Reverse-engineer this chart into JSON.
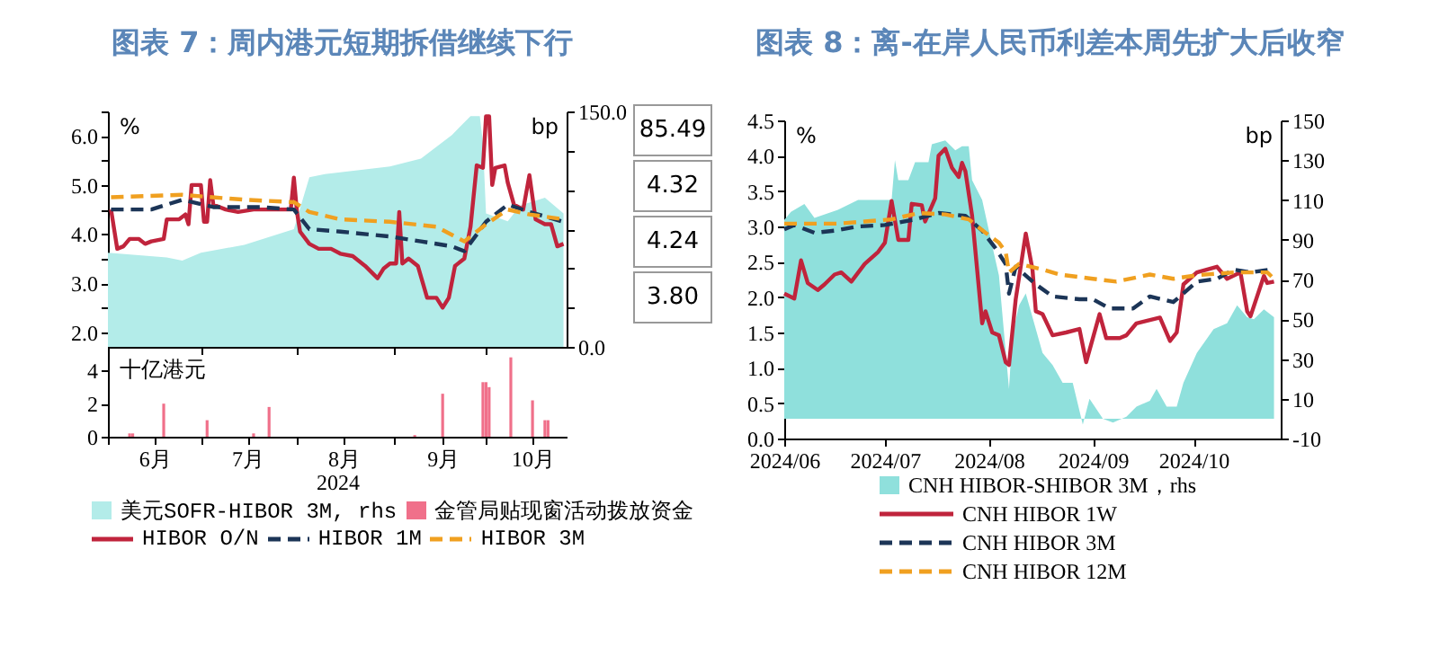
{
  "chart_data": [
    {
      "type": "line",
      "title": "图表 7：周内港元短期拆借继续下行",
      "ylabel": "%",
      "y2label": "bp",
      "xlim": [
        "2024-06-01",
        "2024-10-27"
      ],
      "ylim": [
        1.7,
        6.5
      ],
      "yticks": [
        {
          "value": 2,
          "label": "2.0"
        },
        {
          "value": 2.5,
          "label": null
        },
        {
          "value": 3,
          "label": "3.0"
        },
        {
          "value": 3.5,
          "label": null
        },
        {
          "value": 4,
          "label": "4.0"
        },
        {
          "value": 4.5,
          "label": null
        },
        {
          "value": 5,
          "label": "5.0"
        },
        {
          "value": 5.5,
          "label": null
        },
        {
          "value": 6,
          "label": "6.0"
        },
        {
          "value": 6.5,
          "label": null
        }
      ],
      "y2lim": [
        0,
        150
      ],
      "y2ticks": [
        {
          "value": 0,
          "label": "0.0"
        },
        {
          "value": 25,
          "label": null
        },
        {
          "value": 50,
          "label": null
        },
        {
          "value": 75,
          "label": null
        },
        {
          "value": 100,
          "label": null
        },
        {
          "value": 125,
          "label": null
        },
        {
          "value": 150,
          "label": "150.0"
        }
      ],
      "xticks": [
        {
          "value": "2024-06-01",
          "label": null
        },
        {
          "value": "2024-07-01",
          "label": null
        },
        {
          "value": "2024-08-01",
          "label": null
        },
        {
          "value": "2024-09-01",
          "label": null
        },
        {
          "value": "2024-10-01",
          "label": null
        }
      ],
      "tick_labels": "y",
      "legend": "bottom",
      "annotations": [
        "85.49",
        "4.32",
        "4.24",
        "3.80"
      ],
      "series": [
        {
          "name": "美元SOFR-HIBOR 3M, rhs",
          "type": "area",
          "axis": "y2",
          "color": "#b3ece9",
          "x": [
            "2024-06-01",
            "2024-06-20",
            "2024-06-25",
            "2024-07-01",
            "2024-07-15",
            "2024-07-31",
            "2024-08-05",
            "2024-08-10",
            "2024-08-31",
            "2024-09-10",
            "2024-09-20",
            "2024-09-26",
            "2024-09-29",
            "2024-09-30",
            "2024-10-01",
            "2024-10-08",
            "2024-10-12",
            "2024-10-20",
            "2024-10-26"
          ],
          "values": [
            60,
            57,
            55,
            60,
            65,
            75,
            108,
            110,
            115,
            120,
            135,
            147,
            147,
            130,
            85,
            80,
            90,
            95,
            85
          ]
        },
        {
          "name": "HIBOR O/N",
          "color": "#c0243c",
          "line_style": "solid",
          "x": [
            "2024-06-02",
            "2024-06-04",
            "2024-06-06",
            "2024-06-08",
            "2024-06-11",
            "2024-06-13",
            "2024-06-15",
            "2024-06-19",
            "2024-06-20",
            "2024-06-24",
            "2024-06-26",
            "2024-06-27",
            "2024-06-28",
            "2024-07-01",
            "2024-07-02",
            "2024-07-03",
            "2024-07-04",
            "2024-07-05",
            "2024-07-09",
            "2024-07-13",
            "2024-07-18",
            "2024-07-24",
            "2024-07-30",
            "2024-07-31",
            "2024-08-01",
            "2024-08-02",
            "2024-08-05",
            "2024-08-08",
            "2024-08-12",
            "2024-08-15",
            "2024-08-19",
            "2024-08-23",
            "2024-08-27",
            "2024-08-29",
            "2024-08-31",
            "2024-09-02",
            "2024-09-03",
            "2024-09-04",
            "2024-09-06",
            "2024-09-09",
            "2024-09-12",
            "2024-09-15",
            "2024-09-17",
            "2024-09-19",
            "2024-09-21",
            "2024-09-24",
            "2024-09-26",
            "2024-09-28",
            "2024-09-30",
            "2024-10-01",
            "2024-10-02",
            "2024-10-03",
            "2024-10-04",
            "2024-10-07",
            "2024-10-08",
            "2024-10-10",
            "2024-10-13",
            "2024-10-15",
            "2024-10-17",
            "2024-10-20",
            "2024-10-22",
            "2024-10-24",
            "2024-10-26"
          ],
          "values": [
            4.5,
            3.7,
            3.75,
            3.9,
            3.9,
            3.8,
            3.85,
            3.9,
            4.3,
            4.3,
            4.4,
            4.2,
            5.0,
            5.0,
            4.25,
            4.25,
            5.1,
            4.6,
            4.5,
            4.45,
            4.5,
            4.5,
            4.5,
            5.15,
            4.45,
            4.05,
            3.8,
            3.7,
            3.7,
            3.6,
            3.55,
            3.35,
            3.1,
            3.3,
            3.4,
            3.4,
            4.45,
            3.4,
            3.5,
            3.35,
            2.7,
            2.7,
            2.5,
            2.7,
            3.35,
            3.5,
            4.15,
            5.4,
            5.35,
            6.4,
            6.4,
            5.0,
            5.35,
            5.4,
            5.05,
            4.6,
            4.5,
            5.2,
            4.3,
            4.2,
            4.2,
            3.75,
            3.8
          ]
        },
        {
          "name": "HIBOR 1M",
          "color": "#1c3557",
          "line_style": "dashed",
          "x": [
            "2024-06-02",
            "2024-06-15",
            "2024-06-25",
            "2024-07-05",
            "2024-07-20",
            "2024-07-31",
            "2024-08-05",
            "2024-08-15",
            "2024-08-31",
            "2024-09-10",
            "2024-09-20",
            "2024-09-24",
            "2024-10-01",
            "2024-10-08",
            "2024-10-15",
            "2024-10-26"
          ],
          "values": [
            4.5,
            4.5,
            4.7,
            4.55,
            4.55,
            4.5,
            4.1,
            4.05,
            3.95,
            3.85,
            3.75,
            3.65,
            4.25,
            4.6,
            4.45,
            4.25
          ]
        },
        {
          "name": "HIBOR 3M",
          "color": "#f0a020",
          "line_style": "dashed",
          "x": [
            "2024-06-02",
            "2024-06-25",
            "2024-07-15",
            "2024-07-31",
            "2024-08-05",
            "2024-08-15",
            "2024-08-31",
            "2024-09-15",
            "2024-09-24",
            "2024-10-01",
            "2024-10-08",
            "2024-10-15",
            "2024-10-26"
          ],
          "values": [
            4.75,
            4.8,
            4.7,
            4.65,
            4.45,
            4.3,
            4.25,
            4.15,
            3.85,
            4.2,
            4.5,
            4.4,
            4.3
          ]
        }
      ]
    },
    {
      "type": "bar",
      "xlabel": "2024",
      "ylabel": "十亿港元",
      "xlim": [
        "2024-06-01",
        "2024-10-27"
      ],
      "xticks": [
        {
          "value": "2024-06-01",
          "label": null
        },
        {
          "value": "2024-06-16",
          "label": "6月"
        },
        {
          "value": "2024-07-01",
          "label": null
        },
        {
          "value": "2024-07-16",
          "label": "7月"
        },
        {
          "value": "2024-08-01",
          "label": null
        },
        {
          "value": "2024-08-16",
          "label": "8月"
        },
        {
          "value": "2024-09-01",
          "label": null
        },
        {
          "value": "2024-09-17",
          "label": "9月"
        },
        {
          "value": "2024-10-01",
          "label": null
        },
        {
          "value": "2024-10-16",
          "label": "10月"
        }
      ],
      "ylim": [
        0,
        5
      ],
      "yticks": [
        0,
        2,
        4
      ],
      "legend": "bottom",
      "series": [
        {
          "name": "金管局贴现窗活动拨放资金",
          "color": "#f0708a",
          "x": [
            "2024-06-08",
            "2024-06-09",
            "2024-06-19",
            "2024-07-03",
            "2024-07-18",
            "2024-07-23",
            "2024-09-08",
            "2024-09-17",
            "2024-09-30",
            "2024-10-01",
            "2024-10-02",
            "2024-10-09",
            "2024-10-16",
            "2024-10-20",
            "2024-10-21"
          ],
          "values": [
            0.2,
            0.2,
            2.0,
            1.0,
            0.2,
            1.8,
            0.1,
            2.6,
            3.3,
            3.3,
            3.0,
            4.8,
            2.2,
            1.0,
            1.0
          ]
        }
      ]
    },
    {
      "type": "line",
      "title": "图表 8：离-在岸人民币利差本周先扩大后收窄",
      "ylabel": "%",
      "y2label": "bp",
      "xlim": [
        "2024-06-01",
        "2024-10-27"
      ],
      "xticks": [
        {
          "value": "2024-06-01",
          "label": "2024/06"
        },
        {
          "value": "2024-07-01",
          "label": "2024/07"
        },
        {
          "value": "2024-08-01",
          "label": "2024/08"
        },
        {
          "value": "2024-09-01",
          "label": "2024/09"
        },
        {
          "value": "2024-10-01",
          "label": "2024/10"
        }
      ],
      "ylim": [
        0,
        4.5
      ],
      "yticks": [
        {
          "value": 0,
          "label": "0.0"
        },
        0.5,
        {
          "value": 1,
          "label": "1.0"
        },
        1.5,
        {
          "value": 2,
          "label": "2.0"
        },
        2.5,
        {
          "value": 3,
          "label": "3.0"
        },
        3.5,
        {
          "value": 4,
          "label": "4.0"
        },
        4.5
      ],
      "y2lim": [
        -10,
        150
      ],
      "y2ticks": [
        -10,
        10,
        30,
        50,
        70,
        90,
        110,
        130,
        150
      ],
      "legend": "bottom",
      "series": [
        {
          "name": "CNH HIBOR-SHIBOR  3M，rhs",
          "type": "area",
          "axis": "y2",
          "color": "#8fe0dc",
          "x": [
            "2024-06-01",
            "2024-06-03",
            "2024-06-07",
            "2024-06-10",
            "2024-06-17",
            "2024-06-23",
            "2024-07-01",
            "2024-07-03",
            "2024-07-04",
            "2024-07-05",
            "2024-07-08",
            "2024-07-10",
            "2024-07-14",
            "2024-07-15",
            "2024-07-19",
            "2024-07-22",
            "2024-07-24",
            "2024-07-26",
            "2024-07-27",
            "2024-07-30",
            "2024-08-02",
            "2024-08-04",
            "2024-08-07",
            "2024-08-08",
            "2024-08-10",
            "2024-08-12",
            "2024-08-17",
            "2024-08-20",
            "2024-08-23",
            "2024-08-26",
            "2024-08-29",
            "2024-08-31",
            "2024-09-04",
            "2024-09-07",
            "2024-09-11",
            "2024-09-14",
            "2024-09-18",
            "2024-09-20",
            "2024-09-23",
            "2024-09-26",
            "2024-09-28",
            "2024-10-02",
            "2024-10-07",
            "2024-10-11",
            "2024-10-14",
            "2024-10-17",
            "2024-10-19",
            "2024-10-22",
            "2024-10-25"
          ],
          "values": [
            100,
            104,
            108,
            101,
            105,
            110,
            110,
            110,
            130,
            120,
            120,
            129,
            129,
            138,
            140,
            135,
            137,
            137,
            120,
            110,
            87,
            72,
            15,
            42,
            57,
            63,
            33,
            27,
            18,
            18,
            -3,
            10,
            0,
            -2,
            1,
            6,
            9,
            15,
            6,
            6,
            18,
            33,
            45,
            48,
            57,
            51,
            50,
            55,
            51
          ]
        },
        {
          "name": "CNH HIBOR 1W",
          "color": "#c0243c",
          "line_style": "solid",
          "x": [
            "2024-06-01",
            "2024-06-04",
            "2024-06-06",
            "2024-06-08",
            "2024-06-11",
            "2024-06-13",
            "2024-06-16",
            "2024-06-18",
            "2024-06-21",
            "2024-06-25",
            "2024-06-29",
            "2024-07-01",
            "2024-07-03",
            "2024-07-05",
            "2024-07-08",
            "2024-07-09",
            "2024-07-12",
            "2024-07-13",
            "2024-07-16",
            "2024-07-17",
            "2024-07-19",
            "2024-07-21",
            "2024-07-23",
            "2024-07-24",
            "2024-07-25",
            "2024-07-27",
            "2024-07-30",
            "2024-07-31",
            "2024-08-02",
            "2024-08-04",
            "2024-08-06",
            "2024-08-07",
            "2024-08-09",
            "2024-08-12",
            "2024-08-14",
            "2024-08-15",
            "2024-08-17",
            "2024-08-20",
            "2024-08-24",
            "2024-08-28",
            "2024-08-30",
            "2024-09-03",
            "2024-09-05",
            "2024-09-09",
            "2024-09-11",
            "2024-09-14",
            "2024-09-21",
            "2024-09-24",
            "2024-09-26",
            "2024-09-28",
            "2024-10-02",
            "2024-10-08",
            "2024-10-11",
            "2024-10-15",
            "2024-10-17",
            "2024-10-18",
            "2024-10-22",
            "2024-10-23",
            "2024-10-25"
          ],
          "values": [
            2.05,
            1.98,
            2.52,
            2.2,
            2.1,
            2.18,
            2.32,
            2.35,
            2.22,
            2.47,
            2.64,
            2.77,
            3.36,
            2.81,
            2.81,
            3.32,
            3.3,
            3.07,
            3.4,
            4.0,
            4.1,
            3.83,
            3.7,
            3.9,
            3.78,
            3.15,
            1.63,
            1.8,
            1.5,
            1.46,
            1.08,
            1.04,
            1.97,
            2.9,
            2.39,
            1.8,
            1.76,
            1.46,
            1.5,
            1.55,
            1.08,
            1.76,
            1.42,
            1.42,
            1.46,
            1.63,
            1.71,
            1.38,
            1.5,
            2.18,
            2.35,
            2.43,
            2.26,
            2.35,
            1.8,
            1.73,
            2.3,
            2.2,
            2.22
          ]
        },
        {
          "name": "CNH HIBOR 3M",
          "color": "#1c3557",
          "line_style": "dashed",
          "x": [
            "2024-06-01",
            "2024-06-04",
            "2024-06-10",
            "2024-06-16",
            "2024-06-23",
            "2024-07-01",
            "2024-07-10",
            "2024-07-17",
            "2024-07-25",
            "2024-07-30",
            "2024-08-03",
            "2024-08-06",
            "2024-08-07",
            "2024-08-09",
            "2024-08-15",
            "2024-08-20",
            "2024-08-28",
            "2024-09-01",
            "2024-09-06",
            "2024-09-13",
            "2024-09-18",
            "2024-09-25",
            "2024-10-02",
            "2024-10-08",
            "2024-10-13",
            "2024-10-18",
            "2024-10-24"
          ],
          "values": [
            2.96,
            3.02,
            2.91,
            2.94,
            3.0,
            3.02,
            3.1,
            3.19,
            3.15,
            2.94,
            2.69,
            2.47,
            2.05,
            2.43,
            2.18,
            2.01,
            1.97,
            1.97,
            1.84,
            1.84,
            2.01,
            1.93,
            2.22,
            2.26,
            2.39,
            2.35,
            2.39
          ]
        },
        {
          "name": "CNH HIBOR 12M",
          "color": "#f0a020",
          "line_style": "dashed",
          "x": [
            "2024-06-01",
            "2024-06-08",
            "2024-06-17",
            "2024-06-25",
            "2024-07-03",
            "2024-07-11",
            "2024-07-19",
            "2024-07-26",
            "2024-07-31",
            "2024-08-04",
            "2024-08-06",
            "2024-08-07",
            "2024-08-10",
            "2024-08-17",
            "2024-08-22",
            "2024-09-01",
            "2024-09-08",
            "2024-09-18",
            "2024-09-25",
            "2024-10-02",
            "2024-10-13",
            "2024-10-23",
            "2024-10-25"
          ],
          "values": [
            3.04,
            3.04,
            3.04,
            3.07,
            3.1,
            3.19,
            3.17,
            3.1,
            2.91,
            2.77,
            2.64,
            2.35,
            2.47,
            2.39,
            2.32,
            2.26,
            2.22,
            2.32,
            2.26,
            2.31,
            2.35,
            2.35,
            2.26
          ]
        }
      ]
    }
  ]
}
